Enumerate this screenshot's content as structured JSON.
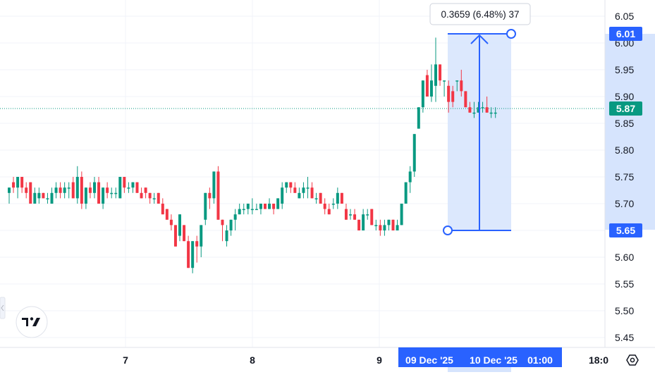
{
  "chart_data": {
    "type": "candlestick",
    "y_ticks": [
      "6.05",
      "6.00",
      "5.95",
      "5.90",
      "5.85",
      "5.80",
      "5.75",
      "5.70",
      "5.65",
      "5.60",
      "5.55",
      "5.50",
      "5.45"
    ],
    "ylim": [
      5.43,
      6.08
    ],
    "x_ticks": [
      "7",
      "8",
      "9",
      "18:0"
    ],
    "grid": true,
    "colors": {
      "up": "#089981",
      "down": "#f23645",
      "accent": "#2962ff",
      "range_fill": "#d6e4fd"
    },
    "last_price": {
      "value": 5.87,
      "label": "5.87"
    },
    "range_marker": {
      "start_price": "5.65",
      "end_price": "6.01",
      "tooltip": "0.3659 (6.48%) 37",
      "start_time_label": "09 Dec '25",
      "end_time_label": "10 Dec '25",
      "extra_time_label": "01:00"
    },
    "candles": [
      [
        5.72,
        5.73,
        5.7,
        5.73
      ],
      [
        5.74,
        5.75,
        5.72,
        5.73
      ],
      [
        5.73,
        5.75,
        5.71,
        5.75
      ],
      [
        5.75,
        5.75,
        5.72,
        5.73
      ],
      [
        5.73,
        5.74,
        5.71,
        5.72
      ],
      [
        5.74,
        5.74,
        5.7,
        5.7
      ],
      [
        5.7,
        5.73,
        5.7,
        5.72
      ],
      [
        5.71,
        5.73,
        5.7,
        5.72
      ],
      [
        5.72,
        5.72,
        5.71,
        5.71
      ],
      [
        5.71,
        5.72,
        5.7,
        5.71
      ],
      [
        5.7,
        5.73,
        5.7,
        5.72
      ],
      [
        5.72,
        5.74,
        5.71,
        5.73
      ],
      [
        5.73,
        5.74,
        5.71,
        5.72
      ],
      [
        5.72,
        5.74,
        5.71,
        5.73
      ],
      [
        5.73,
        5.74,
        5.71,
        5.73
      ],
      [
        5.74,
        5.75,
        5.71,
        5.71
      ],
      [
        5.71,
        5.77,
        5.7,
        5.75
      ],
      [
        5.75,
        5.76,
        5.69,
        5.7
      ],
      [
        5.7,
        5.73,
        5.69,
        5.73
      ],
      [
        5.73,
        5.74,
        5.71,
        5.72
      ],
      [
        5.72,
        5.75,
        5.71,
        5.74
      ],
      [
        5.74,
        5.75,
        5.7,
        5.7
      ],
      [
        5.7,
        5.73,
        5.69,
        5.73
      ],
      [
        5.73,
        5.74,
        5.71,
        5.72
      ],
      [
        5.72,
        5.73,
        5.71,
        5.72
      ],
      [
        5.72,
        5.73,
        5.71,
        5.72
      ],
      [
        5.71,
        5.75,
        5.71,
        5.75
      ],
      [
        5.75,
        5.75,
        5.72,
        5.73
      ],
      [
        5.73,
        5.74,
        5.72,
        5.73
      ],
      [
        5.73,
        5.74,
        5.72,
        5.74
      ],
      [
        5.74,
        5.74,
        5.72,
        5.72
      ],
      [
        5.72,
        5.73,
        5.71,
        5.71
      ],
      [
        5.73,
        5.73,
        5.71,
        5.72
      ],
      [
        5.72,
        5.72,
        5.7,
        5.71
      ],
      [
        5.71,
        5.72,
        5.7,
        5.71
      ],
      [
        5.72,
        5.72,
        5.7,
        5.7
      ],
      [
        5.7,
        5.71,
        5.68,
        5.68
      ],
      [
        5.69,
        5.69,
        5.67,
        5.67
      ],
      [
        5.67,
        5.68,
        5.65,
        5.66
      ],
      [
        5.66,
        5.66,
        5.62,
        5.62
      ],
      [
        5.64,
        5.68,
        5.63,
        5.68
      ],
      [
        5.66,
        5.66,
        5.63,
        5.63
      ],
      [
        5.63,
        5.64,
        5.58,
        5.58
      ],
      [
        5.58,
        5.63,
        5.57,
        5.63
      ],
      [
        5.63,
        5.64,
        5.59,
        5.62
      ],
      [
        5.62,
        5.66,
        5.6,
        5.66
      ],
      [
        5.67,
        5.72,
        5.66,
        5.72
      ],
      [
        5.72,
        5.73,
        5.69,
        5.71
      ],
      [
        5.71,
        5.76,
        5.7,
        5.76
      ],
      [
        5.76,
        5.77,
        5.67,
        5.67
      ],
      [
        5.67,
        5.67,
        5.63,
        5.66
      ],
      [
        5.63,
        5.66,
        5.62,
        5.65
      ],
      [
        5.65,
        5.67,
        5.64,
        5.67
      ],
      [
        5.67,
        5.69,
        5.65,
        5.68
      ],
      [
        5.68,
        5.7,
        5.68,
        5.69
      ],
      [
        5.69,
        5.7,
        5.68,
        5.69
      ],
      [
        5.69,
        5.7,
        5.68,
        5.7
      ],
      [
        5.69,
        5.71,
        5.68,
        5.69
      ],
      [
        5.69,
        5.7,
        5.69,
        5.69
      ],
      [
        5.69,
        5.7,
        5.68,
        5.7
      ],
      [
        5.7,
        5.7,
        5.69,
        5.69
      ],
      [
        5.69,
        5.71,
        5.69,
        5.7
      ],
      [
        5.7,
        5.7,
        5.68,
        5.69
      ],
      [
        5.69,
        5.71,
        5.69,
        5.71
      ],
      [
        5.7,
        5.74,
        5.69,
        5.73
      ],
      [
        5.73,
        5.74,
        5.72,
        5.74
      ],
      [
        5.74,
        5.74,
        5.72,
        5.73
      ],
      [
        5.73,
        5.74,
        5.72,
        5.72
      ],
      [
        5.71,
        5.73,
        5.71,
        5.72
      ],
      [
        5.72,
        5.74,
        5.71,
        5.73
      ],
      [
        5.73,
        5.75,
        5.71,
        5.73
      ],
      [
        5.73,
        5.74,
        5.71,
        5.71
      ],
      [
        5.71,
        5.72,
        5.7,
        5.71
      ],
      [
        5.72,
        5.72,
        5.7,
        5.7
      ],
      [
        5.7,
        5.71,
        5.68,
        5.69
      ],
      [
        5.69,
        5.7,
        5.68,
        5.68
      ],
      [
        5.7,
        5.71,
        5.69,
        5.7
      ],
      [
        5.7,
        5.73,
        5.69,
        5.72
      ],
      [
        5.72,
        5.72,
        5.7,
        5.7
      ],
      [
        5.69,
        5.7,
        5.67,
        5.67
      ],
      [
        5.68,
        5.69,
        5.67,
        5.68
      ],
      [
        5.68,
        5.69,
        5.67,
        5.67
      ],
      [
        5.67,
        5.67,
        5.65,
        5.65
      ],
      [
        5.65,
        5.69,
        5.65,
        5.68
      ],
      [
        5.68,
        5.69,
        5.67,
        5.68
      ],
      [
        5.69,
        5.69,
        5.66,
        5.66
      ],
      [
        5.66,
        5.67,
        5.65,
        5.66
      ],
      [
        5.66,
        5.67,
        5.64,
        5.65
      ],
      [
        5.65,
        5.67,
        5.64,
        5.66
      ],
      [
        5.66,
        5.67,
        5.65,
        5.67
      ],
      [
        5.67,
        5.67,
        5.65,
        5.65
      ],
      [
        5.65,
        5.67,
        5.65,
        5.66
      ],
      [
        5.66,
        5.7,
        5.66,
        5.7
      ],
      [
        5.7,
        5.74,
        5.7,
        5.74
      ],
      [
        5.74,
        5.77,
        5.72,
        5.76
      ],
      [
        5.76,
        5.83,
        5.75,
        5.83
      ],
      [
        5.84,
        5.88,
        5.84,
        5.88
      ],
      [
        5.88,
        5.93,
        5.87,
        5.93
      ],
      [
        5.94,
        5.95,
        5.9,
        5.9
      ],
      [
        5.9,
        5.96,
        5.89,
        5.93
      ],
      [
        5.92,
        6.01,
        5.89,
        5.96
      ],
      [
        5.96,
        5.96,
        5.92,
        5.93
      ],
      [
        5.93,
        5.93,
        5.9,
        5.93
      ],
      [
        5.92,
        5.93,
        5.87,
        5.89
      ],
      [
        5.91,
        5.92,
        5.88,
        5.89
      ],
      [
        5.93,
        5.93,
        5.91,
        5.93
      ],
      [
        5.93,
        5.95,
        5.9,
        5.91
      ],
      [
        5.91,
        5.91,
        5.88,
        5.88
      ],
      [
        5.88,
        5.89,
        5.87,
        5.87
      ],
      [
        5.87,
        5.89,
        5.86,
        5.87
      ],
      [
        5.87,
        5.89,
        5.87,
        5.88
      ],
      [
        5.88,
        5.89,
        5.87,
        5.88
      ],
      [
        5.88,
        5.9,
        5.87,
        5.87
      ],
      [
        5.87,
        5.88,
        5.86,
        5.87
      ],
      [
        5.87,
        5.88,
        5.86,
        5.87
      ]
    ]
  }
}
